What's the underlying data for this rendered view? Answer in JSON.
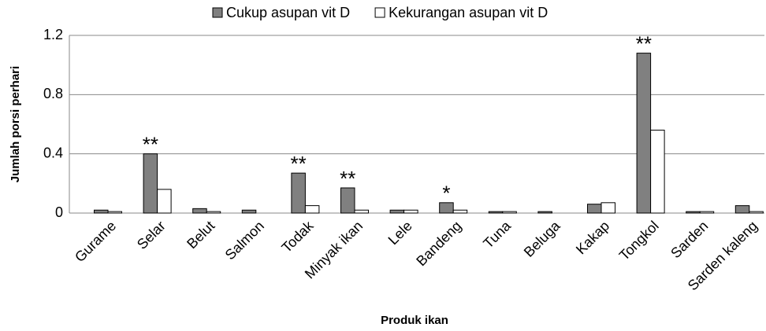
{
  "chart_data": {
    "type": "bar",
    "y_axis_label": "Jumlah porsi perhari",
    "x_axis_label": "Produk ikan",
    "categories": [
      "Gurame",
      "Selar",
      "Belut",
      "Salmon",
      "Todak",
      "Minyak ikan",
      "Lele",
      "Bandeng",
      "Tuna",
      "Beluga",
      "Kakap",
      "Tongkol",
      "Sarden",
      "Sarden kaleng"
    ],
    "series": [
      {
        "name": "Cukup asupan vit D",
        "color": "#808080",
        "values": [
          0.02,
          0.4,
          0.03,
          0.02,
          0.27,
          0.17,
          0.02,
          0.07,
          0.01,
          0.01,
          0.06,
          1.08,
          0.01,
          0.05
        ]
      },
      {
        "name": "Kekurangan asupan vit D",
        "color": "#ffffff",
        "values": [
          0.01,
          0.16,
          0.01,
          0,
          0.05,
          0.02,
          0.02,
          0.02,
          0.01,
          0,
          0.07,
          0.56,
          0.01,
          0.01
        ]
      }
    ],
    "annotations": [
      {
        "category": "Selar",
        "text": "**"
      },
      {
        "category": "Todak",
        "text": "**"
      },
      {
        "category": "Minyak ikan",
        "text": "**"
      },
      {
        "category": "Bandeng",
        "text": "*"
      },
      {
        "category": "Tongkol",
        "text": "**"
      }
    ],
    "ylim": [
      0,
      1.2
    ],
    "yticks": [
      0,
      0.4,
      0.8,
      1.2
    ],
    "grid": true,
    "legend": "top"
  }
}
